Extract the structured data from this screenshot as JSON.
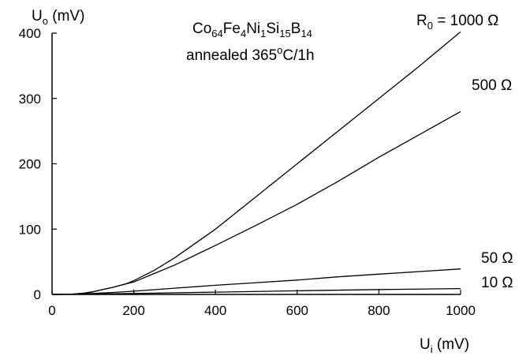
{
  "chart_data": {
    "type": "line",
    "title": "",
    "annotation": {
      "line1": {
        "base": "Co",
        "parts": [
          {
            "sub": "64",
            "text": "Fe"
          },
          {
            "sub": "4",
            "text": "Ni"
          },
          {
            "sub": "1",
            "text": "Si"
          },
          {
            "sub": "15",
            "text": "B"
          },
          {
            "sub": "14",
            "text": ""
          }
        ]
      },
      "line2_prefix": "annealed 365",
      "line2_sup": "o",
      "line2_suffix": "C/1h"
    },
    "xaxis": {
      "label_main": "U",
      "label_sub": "i",
      "label_unit": " (mV)",
      "range": [
        0,
        1000
      ],
      "ticks": [
        0,
        200,
        400,
        600,
        800,
        1000
      ]
    },
    "yaxis": {
      "label_main": "U",
      "label_sub": "o",
      "label_unit": " (mV)",
      "range": [
        0,
        400
      ],
      "ticks": [
        0,
        100,
        200,
        300,
        400
      ]
    },
    "grid": false,
    "legend": "inline-right",
    "series_labels": [
      {
        "prefix": "R",
        "sub": "0",
        "suffix": " = 1000 Ω"
      },
      {
        "prefix": "500 Ω",
        "sub": "",
        "suffix": ""
      },
      {
        "prefix": "50 Ω",
        "sub": "",
        "suffix": ""
      },
      {
        "prefix": "10 Ω",
        "sub": "",
        "suffix": ""
      }
    ],
    "series": [
      {
        "x": [
          0,
          50,
          80,
          100,
          120,
          150,
          180,
          200,
          250,
          300,
          400,
          500,
          600,
          700,
          800,
          900,
          1000
        ],
        "y": [
          0,
          0.5,
          2,
          4,
          7,
          11,
          16,
          21,
          37,
          56,
          100,
          150,
          200,
          250,
          300,
          350,
          402
        ]
      },
      {
        "x": [
          0,
          50,
          80,
          100,
          120,
          150,
          180,
          200,
          250,
          300,
          400,
          500,
          600,
          700,
          800,
          900,
          1000
        ],
        "y": [
          0,
          0.5,
          2,
          4,
          7,
          11,
          16,
          19,
          32,
          45,
          75,
          106,
          138,
          173,
          210,
          245,
          280
        ]
      },
      {
        "x": [
          0,
          50,
          100,
          150,
          200,
          300,
          400,
          500,
          600,
          700,
          800,
          900,
          1000
        ],
        "y": [
          0,
          0.3,
          1.5,
          3,
          5,
          9.5,
          14,
          18,
          22,
          27,
          31,
          35,
          39
        ]
      },
      {
        "x": [
          0,
          100,
          200,
          400,
          600,
          800,
          1000
        ],
        "y": [
          0,
          0.5,
          1.5,
          3.5,
          5.5,
          7.5,
          9
        ]
      }
    ]
  }
}
